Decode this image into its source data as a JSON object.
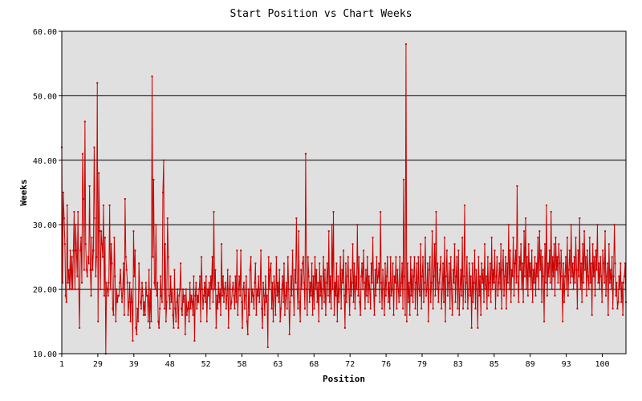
{
  "chart_data": {
    "type": "line",
    "title": "Start Position vs Chart Weeks",
    "xlabel": "Position",
    "ylabel": "Weeks",
    "ylim": [
      10,
      60
    ],
    "y_ticks": [
      "10.00",
      "20.00",
      "30.00",
      "40.00",
      "50.00",
      "60.00"
    ],
    "x_tick_labels": [
      "1",
      "29",
      "39",
      "48",
      "52",
      "58",
      "63",
      "68",
      "72",
      "76",
      "79",
      "83",
      "85",
      "89",
      "93",
      "100"
    ],
    "grid": "horizontal",
    "colors": {
      "background": "#e0e0e0",
      "line": "#cc0000",
      "grid": "#000000"
    },
    "series": [
      {
        "values": [
          42,
          21,
          35,
          31,
          27,
          19,
          18,
          33,
          21,
          23,
          20,
          26,
          20,
          25,
          20,
          26,
          32,
          20,
          30,
          26,
          22,
          32,
          20,
          14,
          26,
          28,
          21,
          41,
          34,
          23,
          46,
          27,
          23,
          22,
          25,
          24,
          36,
          23,
          19,
          28,
          23,
          26,
          42,
          31,
          22,
          25,
          52,
          15,
          38,
          29,
          20,
          29,
          27,
          25,
          33,
          19,
          28,
          10,
          21,
          20,
          19,
          21,
          33,
          20,
          27,
          24,
          17,
          16,
          28,
          22,
          15,
          20,
          18,
          19,
          19,
          21,
          23,
          20,
          18,
          20,
          24,
          16,
          34,
          25,
          23,
          21,
          16,
          18,
          21,
          15,
          20,
          18,
          12,
          29,
          22,
          26,
          14,
          13,
          17,
          15,
          24,
          20,
          18,
          17,
          21,
          19,
          16,
          18,
          16,
          21,
          19,
          19,
          15,
          23,
          14,
          20,
          15,
          53,
          25,
          37,
          21,
          20,
          30,
          19,
          21,
          15,
          14,
          17,
          22,
          19,
          18,
          35,
          40,
          17,
          27,
          15,
          18,
          31,
          25,
          19,
          17,
          22,
          18,
          20,
          16,
          14,
          23,
          17,
          15,
          18,
          20,
          14,
          19,
          20,
          24,
          17,
          16,
          20,
          18,
          19,
          13,
          20,
          16,
          17,
          18,
          15,
          21,
          17,
          19,
          18,
          16,
          22,
          12,
          19,
          21,
          17,
          19,
          18,
          20,
          22,
          15,
          25,
          20,
          17,
          19,
          21,
          18,
          22,
          15,
          20,
          19,
          21,
          17,
          22,
          20,
          25,
          18,
          32,
          20,
          23,
          14,
          19,
          17,
          21,
          18,
          20,
          16,
          27,
          19,
          22,
          18,
          20,
          21,
          17,
          19,
          23,
          14,
          20,
          22,
          17,
          18,
          20,
          21,
          19,
          17,
          22,
          18,
          26,
          16,
          20,
          22,
          19,
          26,
          18,
          14,
          20,
          21,
          17,
          19,
          22,
          15,
          13,
          20,
          16,
          23,
          25,
          18,
          20,
          19,
          17,
          21,
          24,
          16,
          20,
          19,
          22,
          18,
          20,
          26,
          17,
          14,
          21,
          19,
          16,
          22,
          18,
          19,
          11,
          25,
          20,
          23,
          24,
          17,
          21,
          15,
          22,
          20,
          16,
          25,
          19,
          21,
          18,
          23,
          15,
          17,
          20,
          22,
          18,
          24,
          16,
          19,
          21,
          17,
          25,
          20,
          13,
          18,
          22,
          19,
          26,
          20,
          16,
          23,
          21,
          31,
          20,
          17,
          29,
          18,
          15,
          23,
          20,
          24,
          25,
          21,
          17,
          41,
          20,
          16,
          25,
          22,
          18,
          21,
          19,
          24,
          16,
          22,
          17,
          25,
          20,
          23,
          18,
          21,
          15,
          24,
          19,
          22,
          17,
          20,
          25,
          18,
          23,
          16,
          21,
          24,
          19,
          29,
          18,
          22,
          17,
          30,
          20,
          32,
          16,
          21,
          19,
          24,
          15,
          22,
          18,
          20,
          25,
          17,
          23,
          21,
          26,
          19,
          14,
          24,
          18,
          22,
          25,
          20,
          16,
          23,
          19,
          21,
          27,
          18,
          24,
          17,
          22,
          20,
          30,
          19,
          25,
          18,
          16,
          22,
          24,
          20,
          26,
          21,
          17,
          23,
          19,
          25,
          18,
          22,
          20,
          17,
          24,
          21,
          28,
          20,
          16,
          23,
          19,
          25,
          21,
          22,
          24,
          18,
          32,
          21,
          17,
          23,
          20,
          16,
          24,
          19,
          22,
          25,
          18,
          21,
          17,
          25,
          19,
          20,
          24,
          16,
          22,
          21,
          25,
          17,
          23,
          20,
          18,
          25,
          19,
          21,
          24,
          17,
          37,
          22,
          16,
          58,
          15,
          24,
          18,
          21,
          16,
          25,
          19,
          23,
          18,
          22,
          25,
          17,
          21,
          24,
          16,
          25,
          20,
          19,
          27,
          17,
          22,
          25,
          18,
          21,
          28,
          19,
          20,
          24,
          15,
          23,
          25,
          18,
          21,
          29,
          17,
          22,
          27,
          19,
          32,
          20,
          24,
          18,
          21,
          23,
          25,
          17,
          20,
          24,
          18,
          28,
          15,
          22,
          26,
          19,
          21,
          24,
          17,
          25,
          20,
          16,
          23,
          21,
          27,
          18,
          22,
          25,
          17,
          26,
          16,
          20,
          23,
          19,
          28,
          17,
          22,
          33,
          18,
          21,
          25,
          17,
          20,
          24,
          19,
          22,
          14,
          24,
          18,
          21,
          26,
          17,
          23,
          20,
          14,
          25,
          19,
          22,
          16,
          24,
          21,
          23,
          18,
          27,
          20,
          22,
          17,
          25,
          19,
          21,
          24,
          18,
          28,
          20,
          23,
          21,
          26,
          17,
          22,
          25,
          19,
          21,
          24,
          20,
          27,
          17,
          23,
          26,
          19,
          22,
          25,
          17,
          24,
          21,
          30,
          20,
          26,
          18,
          23,
          22,
          28,
          19,
          24,
          26,
          21,
          36,
          22,
          18,
          25,
          23,
          27,
          20,
          24,
          18,
          29,
          22,
          31,
          20,
          25,
          19,
          27,
          22,
          24,
          20,
          26,
          18,
          23,
          21,
          25,
          19,
          24,
          22,
          28,
          20,
          29,
          23,
          26,
          18,
          25,
          22,
          15,
          27,
          21,
          33,
          19,
          24,
          22,
          26,
          21,
          32,
          20,
          25,
          22,
          27,
          19,
          28,
          23,
          25,
          21,
          27,
          24,
          20,
          26,
          22,
          15,
          24,
          18,
          22,
          25,
          20,
          28,
          19,
          23,
          26,
          21,
          30,
          22,
          24,
          20,
          25,
          21,
          28,
          23,
          17,
          26,
          22,
          31,
          20,
          24,
          18,
          27,
          21,
          29,
          23,
          25,
          19,
          26,
          22,
          20,
          28,
          21,
          24,
          16,
          27,
          22,
          25,
          19,
          26,
          23,
          30,
          21,
          24,
          20,
          25,
          22,
          18,
          26,
          24,
          21,
          29,
          19,
          22,
          24,
          16,
          27,
          21,
          23,
          20,
          25,
          17,
          22,
          30,
          24,
          19,
          21,
          17,
          18,
          22,
          20,
          24,
          18,
          21,
          16,
          21,
          22,
          24,
          18
        ]
      }
    ]
  }
}
